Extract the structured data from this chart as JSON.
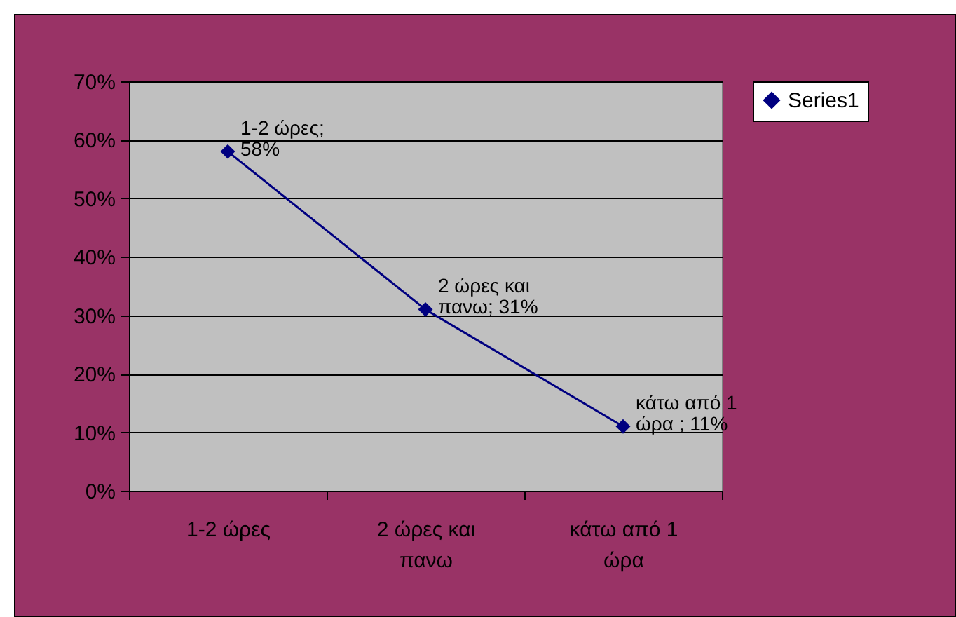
{
  "chart_data": {
    "type": "line",
    "categories": [
      "1-2 ώρες",
      "2 ώρες και πανω",
      "κάτω από 1 ώρα"
    ],
    "series": [
      {
        "name": "Series1",
        "color": "#000080",
        "values": [
          58,
          31,
          11
        ],
        "value_labels": [
          "1-2 ώρες; 58%",
          "2 ώρες και πανω; 31%",
          "κάτω από 1 ώρα ; 11%"
        ]
      }
    ],
    "ylim": [
      0,
      70
    ],
    "yticks": [
      {
        "value": 0,
        "label": "0%"
      },
      {
        "value": 10,
        "label": "10%"
      },
      {
        "value": 20,
        "label": "20%"
      },
      {
        "value": 30,
        "label": "30%"
      },
      {
        "value": 40,
        "label": "40%"
      },
      {
        "value": 50,
        "label": "50%"
      },
      {
        "value": 60,
        "label": "60%"
      },
      {
        "value": 70,
        "label": "70%"
      }
    ],
    "grid": "y",
    "legend": "right",
    "marker": "diamond",
    "line_style": "solid"
  }
}
